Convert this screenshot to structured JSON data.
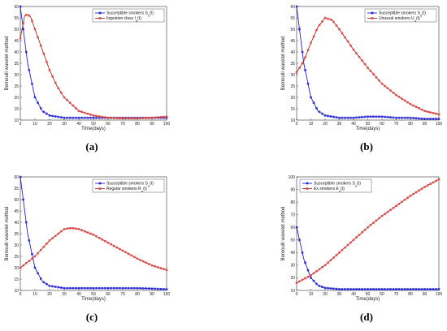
{
  "colors": {
    "susceptible": "#1f1fd6",
    "other": "#a03020",
    "other_marker": "#e04040"
  },
  "chart_data": [
    {
      "type": "line",
      "panel": "(a)",
      "xlabel": "Time(days)",
      "ylabel": "Bernoulli wavelet method",
      "xlim": [
        0,
        100
      ],
      "ylim": [
        10,
        60
      ],
      "xticks": [
        0,
        10,
        20,
        30,
        40,
        50,
        60,
        70,
        80,
        90,
        100
      ],
      "yticks": [
        10,
        15,
        20,
        25,
        30,
        35,
        40,
        45,
        50,
        55,
        60
      ],
      "legend_position": "top-right",
      "series": [
        {
          "name": "Susceptible smokers S_α(t)",
          "color": "#1f1fd6",
          "marker": "square",
          "x": [
            0,
            5,
            10,
            15,
            20,
            30,
            40,
            50,
            60,
            70,
            80,
            90,
            100
          ],
          "y": [
            60,
            35,
            20,
            14,
            12,
            11,
            11,
            11,
            11,
            11,
            11,
            11,
            11
          ]
        },
        {
          "name": "Ingestion class I_α(t)",
          "color": "#a03020",
          "marker": "square",
          "x": [
            0,
            3,
            5,
            7,
            10,
            15,
            20,
            25,
            30,
            40,
            50,
            60,
            70,
            80,
            90,
            100
          ],
          "y": [
            46,
            56,
            56.5,
            55.5,
            50,
            41,
            32,
            25,
            20,
            14,
            12,
            11,
            10.8,
            10.8,
            11,
            11.5
          ]
        }
      ]
    },
    {
      "type": "line",
      "panel": "(b)",
      "xlabel": "Time(days)",
      "ylabel": "Bernoulli wavelet method",
      "xlim": [
        0,
        100
      ],
      "ylim": [
        10,
        60
      ],
      "xticks": [
        0,
        10,
        20,
        30,
        40,
        50,
        60,
        70,
        80,
        90,
        100
      ],
      "yticks": [
        10,
        15,
        20,
        25,
        30,
        35,
        40,
        45,
        50,
        55,
        60
      ],
      "legend_position": "top-right",
      "series": [
        {
          "name": "Susceptible smokers S_α(t)",
          "color": "#1f1fd6",
          "marker": "square",
          "x": [
            0,
            5,
            10,
            15,
            20,
            30,
            40,
            50,
            60,
            70,
            80,
            90,
            100
          ],
          "y": [
            60,
            35,
            20,
            14,
            12,
            11,
            11,
            11.5,
            11.5,
            11,
            11,
            10.5,
            10.5
          ]
        },
        {
          "name": "Unusual smokers U_α(t)",
          "color": "#a03020",
          "marker": "square",
          "x": [
            0,
            5,
            10,
            15,
            20,
            25,
            30,
            40,
            50,
            60,
            70,
            80,
            90,
            100
          ],
          "y": [
            31,
            36,
            44,
            51,
            55,
            54,
            50,
            41,
            33,
            26,
            21,
            17,
            14,
            12.5
          ]
        }
      ]
    },
    {
      "type": "line",
      "panel": "(c)",
      "xlabel": "Time(days)",
      "ylabel": "Bernoulli wavelet method",
      "xlim": [
        0,
        100
      ],
      "ylim": [
        10,
        60
      ],
      "xticks": [
        0,
        10,
        20,
        30,
        40,
        50,
        60,
        70,
        80,
        90,
        100
      ],
      "yticks": [
        10,
        15,
        20,
        25,
        30,
        35,
        40,
        45,
        50,
        55,
        60
      ],
      "legend_position": "top-right",
      "series": [
        {
          "name": "Susceptible smokers S_α(t)",
          "color": "#1f1fd6",
          "marker": "square",
          "x": [
            0,
            5,
            10,
            15,
            20,
            30,
            40,
            50,
            60,
            70,
            80,
            90,
            100
          ],
          "y": [
            60,
            35,
            20,
            14,
            12,
            11,
            11,
            11,
            11,
            11,
            11,
            10.8,
            10.5
          ]
        },
        {
          "name": "Regular smokers R_α(t)",
          "color": "#a03020",
          "marker": "square",
          "x": [
            0,
            10,
            20,
            30,
            35,
            40,
            50,
            60,
            70,
            80,
            90,
            100
          ],
          "y": [
            20,
            25,
            32,
            37,
            37.5,
            37,
            34.5,
            31,
            27.5,
            24,
            21,
            19
          ]
        }
      ]
    },
    {
      "type": "line",
      "panel": "(d)",
      "xlabel": "Time(days)",
      "ylabel": "Bernoulli wavelet method",
      "xlim": [
        0,
        100
      ],
      "ylim": [
        10,
        100
      ],
      "xticks": [
        0,
        10,
        20,
        30,
        40,
        50,
        60,
        70,
        80,
        90,
        100
      ],
      "yticks": [
        10,
        20,
        30,
        40,
        50,
        60,
        70,
        80,
        90,
        100
      ],
      "legend_position": "top-left",
      "series": [
        {
          "name": "Susceptible smokers S_α(t)",
          "color": "#1f1fd6",
          "marker": "square",
          "x": [
            0,
            5,
            10,
            15,
            20,
            30,
            40,
            50,
            60,
            70,
            80,
            90,
            100
          ],
          "y": [
            60,
            35,
            20,
            14,
            12,
            11,
            11,
            11,
            11,
            11,
            11,
            11,
            11
          ]
        },
        {
          "name": "Ex smokers E_α(t)",
          "color": "#a03020",
          "marker": "square",
          "x": [
            0,
            10,
            20,
            30,
            40,
            50,
            60,
            70,
            80,
            90,
            100
          ],
          "y": [
            16,
            22,
            30,
            40,
            50,
            60,
            69,
            77,
            85,
            92,
            98
          ]
        }
      ]
    }
  ]
}
